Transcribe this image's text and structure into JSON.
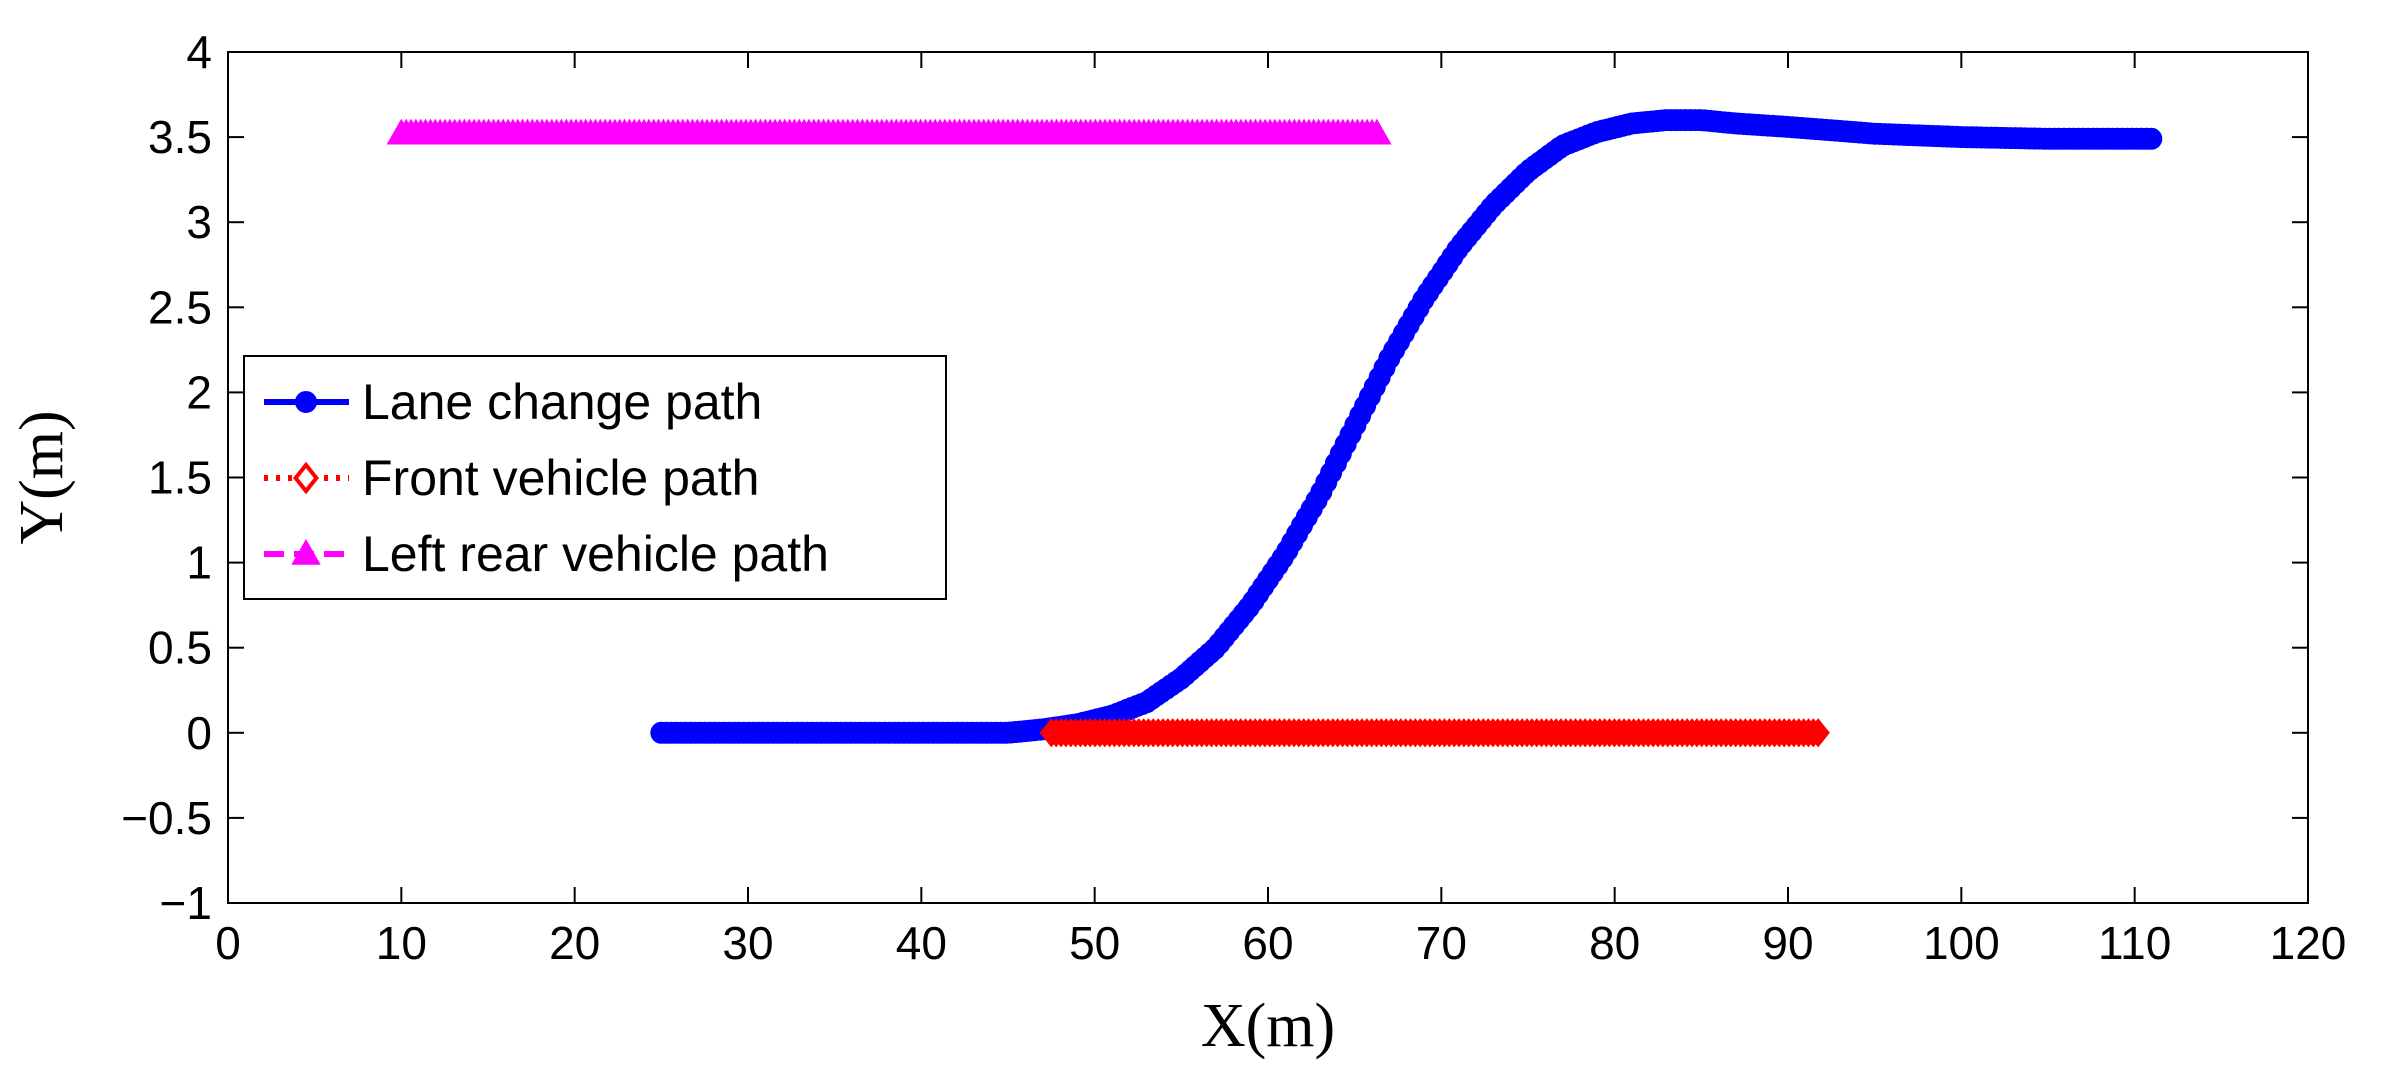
{
  "chart_data": {
    "type": "line",
    "title": "",
    "xlabel": "X(m)",
    "ylabel": "Y(m)",
    "xlim": [
      0,
      120
    ],
    "ylim": [
      -1,
      4
    ],
    "xticks": [
      0,
      10,
      20,
      30,
      40,
      50,
      60,
      70,
      80,
      90,
      100,
      110,
      120
    ],
    "yticks": [
      -1,
      -0.5,
      0,
      0.5,
      1,
      1.5,
      2,
      2.5,
      3,
      3.5,
      4
    ],
    "xtick_labels": [
      "0",
      "10",
      "20",
      "30",
      "40",
      "50",
      "60",
      "70",
      "80",
      "90",
      "100",
      "110",
      "120"
    ],
    "ytick_labels": [
      "−1",
      "−0.5",
      "0",
      "0.5",
      "1",
      "1.5",
      "2",
      "2.5",
      "3",
      "3.5",
      "4"
    ],
    "grid": false,
    "legend_position": "center-left",
    "series": [
      {
        "name": "Lane change path",
        "color": "#0000ff",
        "line_style": "solid",
        "marker": "circle",
        "x": [
          25,
          30,
          35,
          40,
          45,
          47,
          49,
          51,
          53,
          55,
          57,
          59,
          61,
          63,
          65,
          67,
          69,
          71,
          73,
          75,
          77,
          79,
          81,
          83,
          85,
          87,
          90,
          95,
          100,
          105,
          111
        ],
        "y": [
          0,
          0,
          0,
          0,
          0,
          0.02,
          0.05,
          0.1,
          0.18,
          0.32,
          0.5,
          0.75,
          1.05,
          1.4,
          1.8,
          2.2,
          2.55,
          2.85,
          3.1,
          3.3,
          3.45,
          3.53,
          3.58,
          3.6,
          3.6,
          3.58,
          3.56,
          3.52,
          3.5,
          3.49,
          3.49
        ]
      },
      {
        "name": "Front vehicle path",
        "color": "#ff0000",
        "line_style": "dotted",
        "marker": "diamond",
        "x": [
          47.5,
          92
        ],
        "y": [
          0,
          0
        ]
      },
      {
        "name": "Left rear vehicle path",
        "color": "#ff00ff",
        "line_style": "dashed",
        "marker": "triangle",
        "x": [
          10,
          66.5
        ],
        "y": [
          3.52,
          3.52
        ]
      }
    ]
  }
}
